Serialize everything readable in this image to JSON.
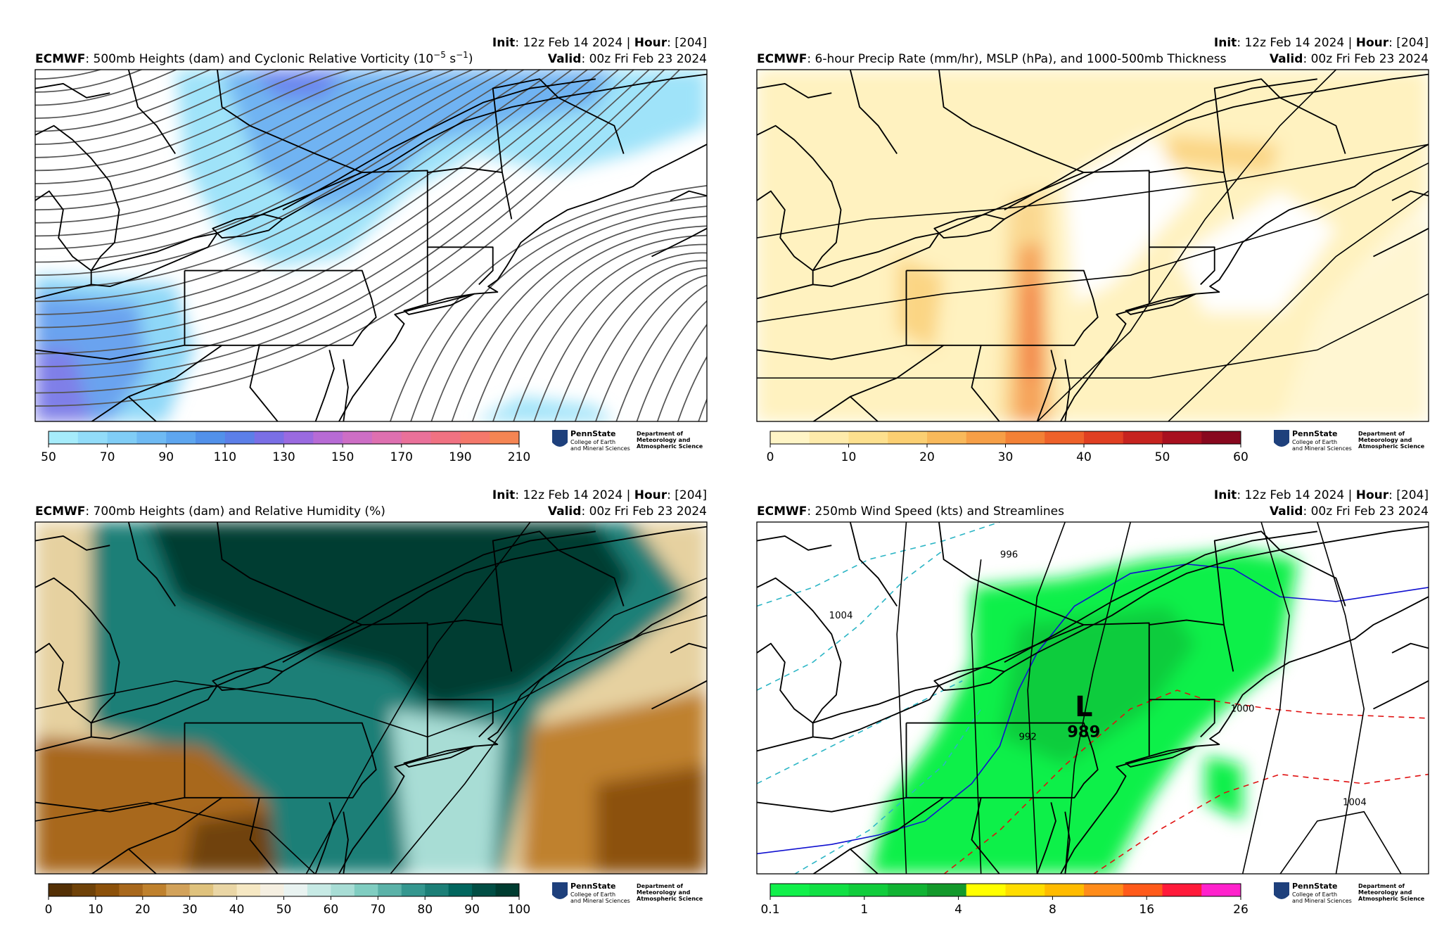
{
  "header": {
    "model": "ECMWF",
    "init_label": "Init",
    "init_text": ": 12z Feb 14 2024 | ",
    "hour_label": "Hour",
    "hour_text": ": [204]",
    "valid_label": "Valid",
    "valid_text": ": 00z Fri Feb 23 2024"
  },
  "logo": {
    "name": "PennState",
    "college_1": "College of Earth",
    "college_2": "and Mineral Sciences",
    "dept_1": "Department of",
    "dept_2": "Meteorology and",
    "dept_3": "Atmospheric Science"
  },
  "panels": [
    {
      "title_parts": [
        ": 500mb Heights (dam) and Cyclonic Relative Vorticity (10",
        "−5",
        " s",
        "−1",
        ")"
      ],
      "colorbar": {
        "ticks": [
          50,
          70,
          90,
          110,
          130,
          150,
          170,
          190,
          210
        ],
        "colors": [
          "#a6ecfb",
          "#92dcf9",
          "#80cdf6",
          "#6fbaf3",
          "#5ea6ef",
          "#5291ea",
          "#5c7fe8",
          "#7a6fe6",
          "#9a6ae0",
          "#b76bd5",
          "#cd6ec5",
          "#de70b0",
          "#ea719a",
          "#f07282",
          "#f4786b",
          "#f58553"
        ]
      }
    },
    {
      "title_parts": [
        ": 6-hour Precip Rate (mm/hr), MSLP (hPa), and 1000-500mb Thickness"
      ],
      "colorbar": {
        "ticks": [
          0,
          10,
          20,
          30,
          40,
          50,
          60
        ],
        "colors": [
          "#fff5c6",
          "#feebab",
          "#fde08e",
          "#fbcf72",
          "#f8b95b",
          "#f69f47",
          "#f38136",
          "#ee612a",
          "#e03f22",
          "#c6231f",
          "#a8101f",
          "#88081e"
        ]
      }
    },
    {
      "title_parts": [
        ": 700mb Heights (dam) and Relative Humidity (%)"
      ],
      "colorbar": {
        "ticks": [
          0,
          10,
          20,
          30,
          40,
          50,
          60,
          70,
          80,
          90,
          100
        ],
        "colors": [
          "#543005",
          "#6f4208",
          "#8c510a",
          "#a8681c",
          "#bf812d",
          "#d2a25a",
          "#dfc27d",
          "#ead6a5",
          "#f6e8c3",
          "#f5efe1",
          "#e9f3f1",
          "#c7eae5",
          "#a8ddd5",
          "#80cdc1",
          "#5bb2a8",
          "#35978f",
          "#1c7f77",
          "#01665e",
          "#014e44",
          "#003c30"
        ]
      }
    },
    {
      "title_parts": [
        ": 250mb Wind Speed (kts) and Streamlines"
      ],
      "colorbar": {
        "ticks": [
          0.1,
          1,
          4,
          8,
          16,
          26
        ],
        "colors": [
          "#11f04a",
          "#11e044",
          "#11cc3c",
          "#11b333",
          "#13992b",
          "#ffff00",
          "#ffdd00",
          "#ffbb00",
          "#ff8c1a",
          "#ff5a1a",
          "#ff1a3a",
          "#ff22cc"
        ]
      },
      "map_labels": [
        "L",
        "989",
        "1004",
        "996",
        "992",
        "1000",
        "1004"
      ]
    }
  ]
}
